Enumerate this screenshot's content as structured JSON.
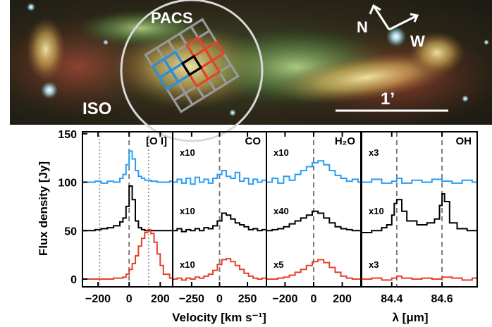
{
  "image": {
    "labels": {
      "pacs": "PACS",
      "iso": "ISO",
      "north": "N",
      "west": "W",
      "scalebar": "1’"
    },
    "colors": {
      "pacs_grid": "#999999",
      "blue_grid": "#2a8ee0",
      "red_grid": "#e8412a",
      "center_pixel": "#000000",
      "iso_beam": "#d8d8d8"
    }
  },
  "chart_data": [
    {
      "type": "line",
      "panel": "[O I]",
      "title": "[O I]",
      "xlabel": "Velocity [km s⁻¹]",
      "ylabel": "Flux density [Jy]",
      "xlim": [
        -300,
        280
      ],
      "ylim": [
        -8,
        152
      ],
      "x_ticks": [
        -200,
        0,
        200
      ],
      "y_ticks": [
        0,
        50,
        100,
        150
      ],
      "vlines_dashed": [
        0
      ],
      "vlines_dotted": [
        -190,
        125
      ],
      "series": [
        {
          "color": "#2a9df4",
          "x": [
            -300,
            -260,
            -220,
            -180,
            -140,
            -100,
            -60,
            -40,
            -20,
            0,
            20,
            40,
            60,
            80,
            100,
            140,
            180,
            220,
            260,
            280
          ],
          "values": [
            100,
            100,
            101,
            99,
            101,
            100,
            104,
            108,
            118,
            132,
            124,
            112,
            106,
            104,
            102,
            101,
            100,
            100,
            101,
            100
          ]
        },
        {
          "color": "#000000",
          "x": [
            -300,
            -260,
            -220,
            -180,
            -140,
            -100,
            -60,
            -40,
            -20,
            0,
            20,
            40,
            60,
            80,
            100,
            140,
            180,
            220,
            260,
            280
          ],
          "values": [
            50,
            50,
            51,
            52,
            53,
            55,
            59,
            63,
            75,
            96,
            82,
            60,
            53,
            51,
            50,
            50,
            50,
            50,
            50,
            50
          ]
        },
        {
          "color": "#e8412a",
          "x": [
            -300,
            -260,
            -220,
            -180,
            -140,
            -100,
            -60,
            -40,
            -20,
            0,
            20,
            40,
            60,
            80,
            100,
            120,
            140,
            160,
            180,
            200,
            220,
            260,
            280
          ],
          "values": [
            0,
            0,
            0,
            0,
            0,
            1,
            1,
            2,
            5,
            10,
            16,
            24,
            34,
            42,
            48,
            51,
            47,
            38,
            26,
            14,
            5,
            1,
            0
          ]
        }
      ]
    },
    {
      "type": "line",
      "panel": "CO",
      "title": "CO",
      "xlim": [
        -420,
        420
      ],
      "ylim": [
        -8,
        152
      ],
      "x_ticks": [
        -250,
        0,
        250
      ],
      "vlines_dashed": [
        0
      ],
      "scale_labels": [
        "x10",
        "x10",
        "x10"
      ],
      "series": [
        {
          "color": "#2a9df4",
          "x": [
            -420,
            -380,
            -340,
            -300,
            -260,
            -220,
            -180,
            -140,
            -100,
            -60,
            -20,
            20,
            60,
            100,
            140,
            180,
            220,
            260,
            300,
            340,
            380,
            420
          ],
          "values": [
            100,
            103,
            99,
            104,
            98,
            105,
            100,
            103,
            99,
            104,
            108,
            112,
            106,
            104,
            110,
            101,
            104,
            98,
            103,
            100,
            102,
            100
          ]
        },
        {
          "color": "#000000",
          "x": [
            -420,
            -380,
            -340,
            -300,
            -260,
            -220,
            -180,
            -140,
            -100,
            -60,
            -20,
            20,
            60,
            100,
            140,
            180,
            220,
            260,
            300,
            340,
            380,
            420
          ],
          "values": [
            50,
            52,
            49,
            51,
            50,
            52,
            50,
            53,
            52,
            55,
            60,
            68,
            66,
            62,
            58,
            56,
            54,
            51,
            52,
            50,
            51,
            50
          ]
        },
        {
          "color": "#e8412a",
          "x": [
            -420,
            -380,
            -340,
            -300,
            -260,
            -220,
            -180,
            -140,
            -100,
            -60,
            -20,
            20,
            60,
            100,
            140,
            180,
            220,
            260,
            300,
            340,
            380,
            420
          ],
          "values": [
            0,
            1,
            -1,
            1,
            0,
            2,
            1,
            3,
            5,
            9,
            15,
            20,
            21,
            18,
            14,
            10,
            6,
            3,
            1,
            0,
            1,
            0
          ]
        }
      ]
    },
    {
      "type": "line",
      "panel": "H2O",
      "title": "H₂O",
      "xlim": [
        -330,
        330
      ],
      "ylim": [
        -8,
        152
      ],
      "x_ticks": [
        -200,
        0,
        200
      ],
      "vlines_dashed": [
        0
      ],
      "scale_labels": [
        "x10",
        "x40",
        "x5"
      ],
      "series": [
        {
          "color": "#2a9df4",
          "x": [
            -330,
            -290,
            -250,
            -210,
            -170,
            -130,
            -90,
            -50,
            -10,
            30,
            70,
            110,
            150,
            190,
            230,
            270,
            310,
            330
          ],
          "values": [
            100,
            104,
            99,
            106,
            102,
            108,
            112,
            116,
            120,
            122,
            118,
            112,
            107,
            104,
            101,
            103,
            100,
            100
          ]
        },
        {
          "color": "#000000",
          "x": [
            -330,
            -290,
            -250,
            -210,
            -170,
            -130,
            -90,
            -50,
            -10,
            30,
            70,
            110,
            150,
            190,
            230,
            270,
            310,
            330
          ],
          "values": [
            50,
            51,
            52,
            54,
            57,
            60,
            63,
            66,
            70,
            68,
            63,
            58,
            54,
            52,
            51,
            50,
            50,
            50
          ]
        },
        {
          "color": "#e8412a",
          "x": [
            -330,
            -290,
            -250,
            -210,
            -170,
            -130,
            -90,
            -50,
            -10,
            30,
            70,
            110,
            150,
            190,
            230,
            270,
            310,
            330
          ],
          "values": [
            0,
            0,
            1,
            2,
            4,
            7,
            10,
            14,
            18,
            20,
            17,
            12,
            7,
            3,
            1,
            0,
            0,
            0
          ]
        }
      ]
    },
    {
      "type": "line",
      "panel": "OH",
      "title": "OH",
      "xlabel": "λ [μm]",
      "xlim": [
        84.28,
        84.74
      ],
      "ylim": [
        -8,
        152
      ],
      "x_ticks": [
        84.4,
        84.6
      ],
      "x_tick_labels": [
        "84.4",
        "84.6"
      ],
      "vlines_dashed": [
        84.42,
        84.6
      ],
      "scale_labels": [
        "x3",
        "x10",
        "x3"
      ],
      "series": [
        {
          "color": "#2a9df4",
          "x": [
            84.28,
            84.32,
            84.36,
            84.4,
            84.42,
            84.44,
            84.48,
            84.52,
            84.56,
            84.6,
            84.64,
            84.68,
            84.72,
            84.74
          ],
          "values": [
            100,
            103,
            99,
            101,
            104,
            99,
            102,
            100,
            103,
            101,
            99,
            102,
            100,
            101
          ]
        },
        {
          "color": "#000000",
          "x": [
            84.28,
            84.32,
            84.36,
            84.38,
            84.4,
            84.41,
            84.42,
            84.44,
            84.46,
            84.5,
            84.54,
            84.57,
            84.59,
            84.6,
            84.61,
            84.63,
            84.66,
            84.7,
            84.74
          ],
          "values": [
            48,
            50,
            53,
            56,
            66,
            78,
            82,
            70,
            60,
            56,
            58,
            62,
            76,
            88,
            80,
            58,
            52,
            50,
            50
          ]
        },
        {
          "color": "#e8412a",
          "x": [
            84.28,
            84.32,
            84.36,
            84.4,
            84.42,
            84.44,
            84.48,
            84.52,
            84.56,
            84.6,
            84.64,
            84.68,
            84.72,
            84.74
          ],
          "values": [
            0,
            1,
            -1,
            1,
            3,
            1,
            0,
            1,
            0,
            2,
            1,
            -1,
            1,
            0
          ]
        }
      ]
    }
  ]
}
